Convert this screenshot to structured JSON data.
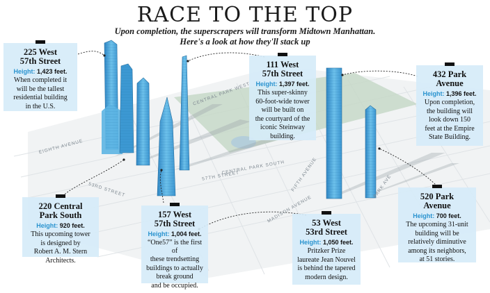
{
  "title": "RACE TO THE TOP",
  "subtitle_1": "Upon completion, the superscrapers will transform Midtown Manhattan.",
  "subtitle_2": "Here's a look at how they'll stack up",
  "height_label": "Height:",
  "streets": {
    "central_park_west": "CENTRAL PARK WEST",
    "eighth_avenue": "EIGHTH AVENUE",
    "central_park_south": "CENTRAL PARK SOUTH",
    "st_57": "57TH STREET",
    "fifth_avenue": "FIFTH AVENUE",
    "st_53": "53RD STREET",
    "madison_avenue": "MADISON AVENUE",
    "park_ave": "PARK AVE"
  },
  "buildings": [
    {
      "name_1": "225 West",
      "name_2": "57th Street",
      "height": "1,423 feet.",
      "desc": [
        "When completed it",
        "will be the tallest",
        "residential building",
        "in the U.S."
      ]
    },
    {
      "name_1": "111 West",
      "name_2": "57th Street",
      "height": "1,397 feet.",
      "desc": [
        "This super-skinny",
        "60-foot-wide tower",
        "will be built on",
        "the courtyard of the",
        "iconic Steinway",
        "building."
      ]
    },
    {
      "name_1": "432 Park",
      "name_2": "Avenue",
      "height": "1,396 feet.",
      "desc": [
        "Upon completion,",
        "the building will",
        "look down 150",
        "feet at the Empire",
        "State Building."
      ]
    },
    {
      "name_1": "220 Central",
      "name_2": "Park South",
      "height": "920 feet.",
      "desc": [
        "This upcoming tower",
        "is designed by",
        "Robert A. M. Stern",
        "Architects."
      ]
    },
    {
      "name_1": "157 West",
      "name_2": "57th Street",
      "height": "1,004 feet.",
      "desc": [
        "“One57” is the first of",
        "these trendsetting",
        "buildings to actually",
        "break ground",
        "and be occupied."
      ]
    },
    {
      "name_1": "53 West",
      "name_2": "53rd Street",
      "height": "1,050 feet.",
      "desc": [
        "Pritzker Prize",
        "laureate Jean Nouvel",
        "is behind the tapered",
        "modern design."
      ]
    },
    {
      "name_1": "520 Park",
      "name_2": "Avenue",
      "height": "700 feet.",
      "desc": [
        "The upcoming 31-unit",
        "building will be",
        "relatively diminutive",
        "among its neighbors,",
        "at 51 stories."
      ]
    }
  ],
  "colors": {
    "tower": "#4aa9dc",
    "tower_dark": "#2c7fb8",
    "card": "#d6ecf8",
    "accent": "#2a93cf",
    "park": "#c4d7c6"
  }
}
